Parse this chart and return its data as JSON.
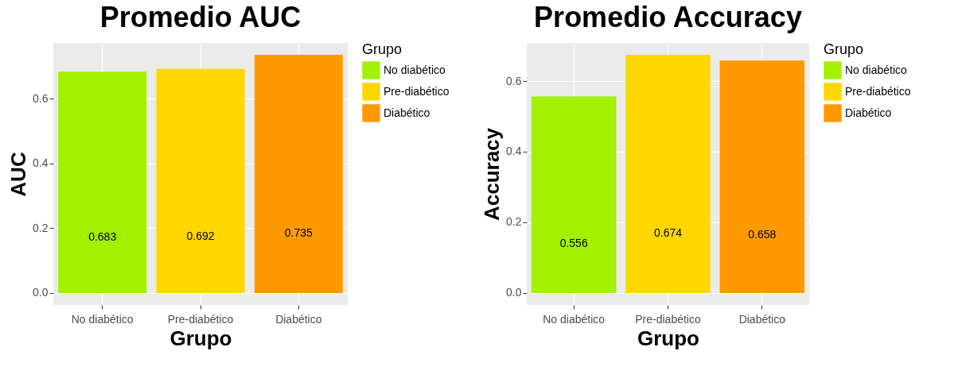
{
  "chart_data": [
    {
      "type": "bar",
      "title": "Promedio AUC",
      "xlabel": "Grupo",
      "ylabel": "AUC",
      "legend_title": "Grupo",
      "categories": [
        "No diabético",
        "Pre-diabético",
        "Diabético"
      ],
      "series": [
        {
          "name": "No diabético",
          "color": "#a3f000",
          "values": [
            0.683,
            null,
            null
          ]
        },
        {
          "name": "Pre-diabético",
          "color": "#ffd700",
          "values": [
            null,
            0.692,
            null
          ]
        },
        {
          "name": "Diabético",
          "color": "#ff9900",
          "values": [
            null,
            null,
            0.735
          ]
        }
      ],
      "ylim": [
        -0.037,
        0.772
      ],
      "yticks": [
        {
          "value": 0,
          "label": "0.0"
        },
        {
          "value": 0.2,
          "label": "0.2"
        },
        {
          "value": 0.4,
          "label": "0.4"
        },
        {
          "value": 0.6,
          "label": "0.6"
        }
      ],
      "grid": true,
      "legend": "right",
      "data_labels": true
    },
    {
      "type": "bar",
      "title": "Promedio Accuracy",
      "xlabel": "Grupo",
      "ylabel": "Accuracy",
      "legend_title": "Grupo",
      "categories": [
        "No diabético",
        "Pre-diabético",
        "Diabético"
      ],
      "series": [
        {
          "name": "No diabético",
          "color": "#a3f000",
          "values": [
            0.556,
            null,
            null
          ]
        },
        {
          "name": "Pre-diabético",
          "color": "#ffd700",
          "values": [
            null,
            0.674,
            null
          ]
        },
        {
          "name": "Diabético",
          "color": "#ff9900",
          "values": [
            null,
            null,
            0.658
          ]
        }
      ],
      "ylim": [
        -0.034,
        0.708
      ],
      "yticks": [
        {
          "value": 0,
          "label": "0.0"
        },
        {
          "value": 0.2,
          "label": "0.2"
        },
        {
          "value": 0.4,
          "label": "0.4"
        },
        {
          "value": 0.6,
          "label": "0.6"
        }
      ],
      "grid": true,
      "legend": "right",
      "data_labels": true
    }
  ]
}
